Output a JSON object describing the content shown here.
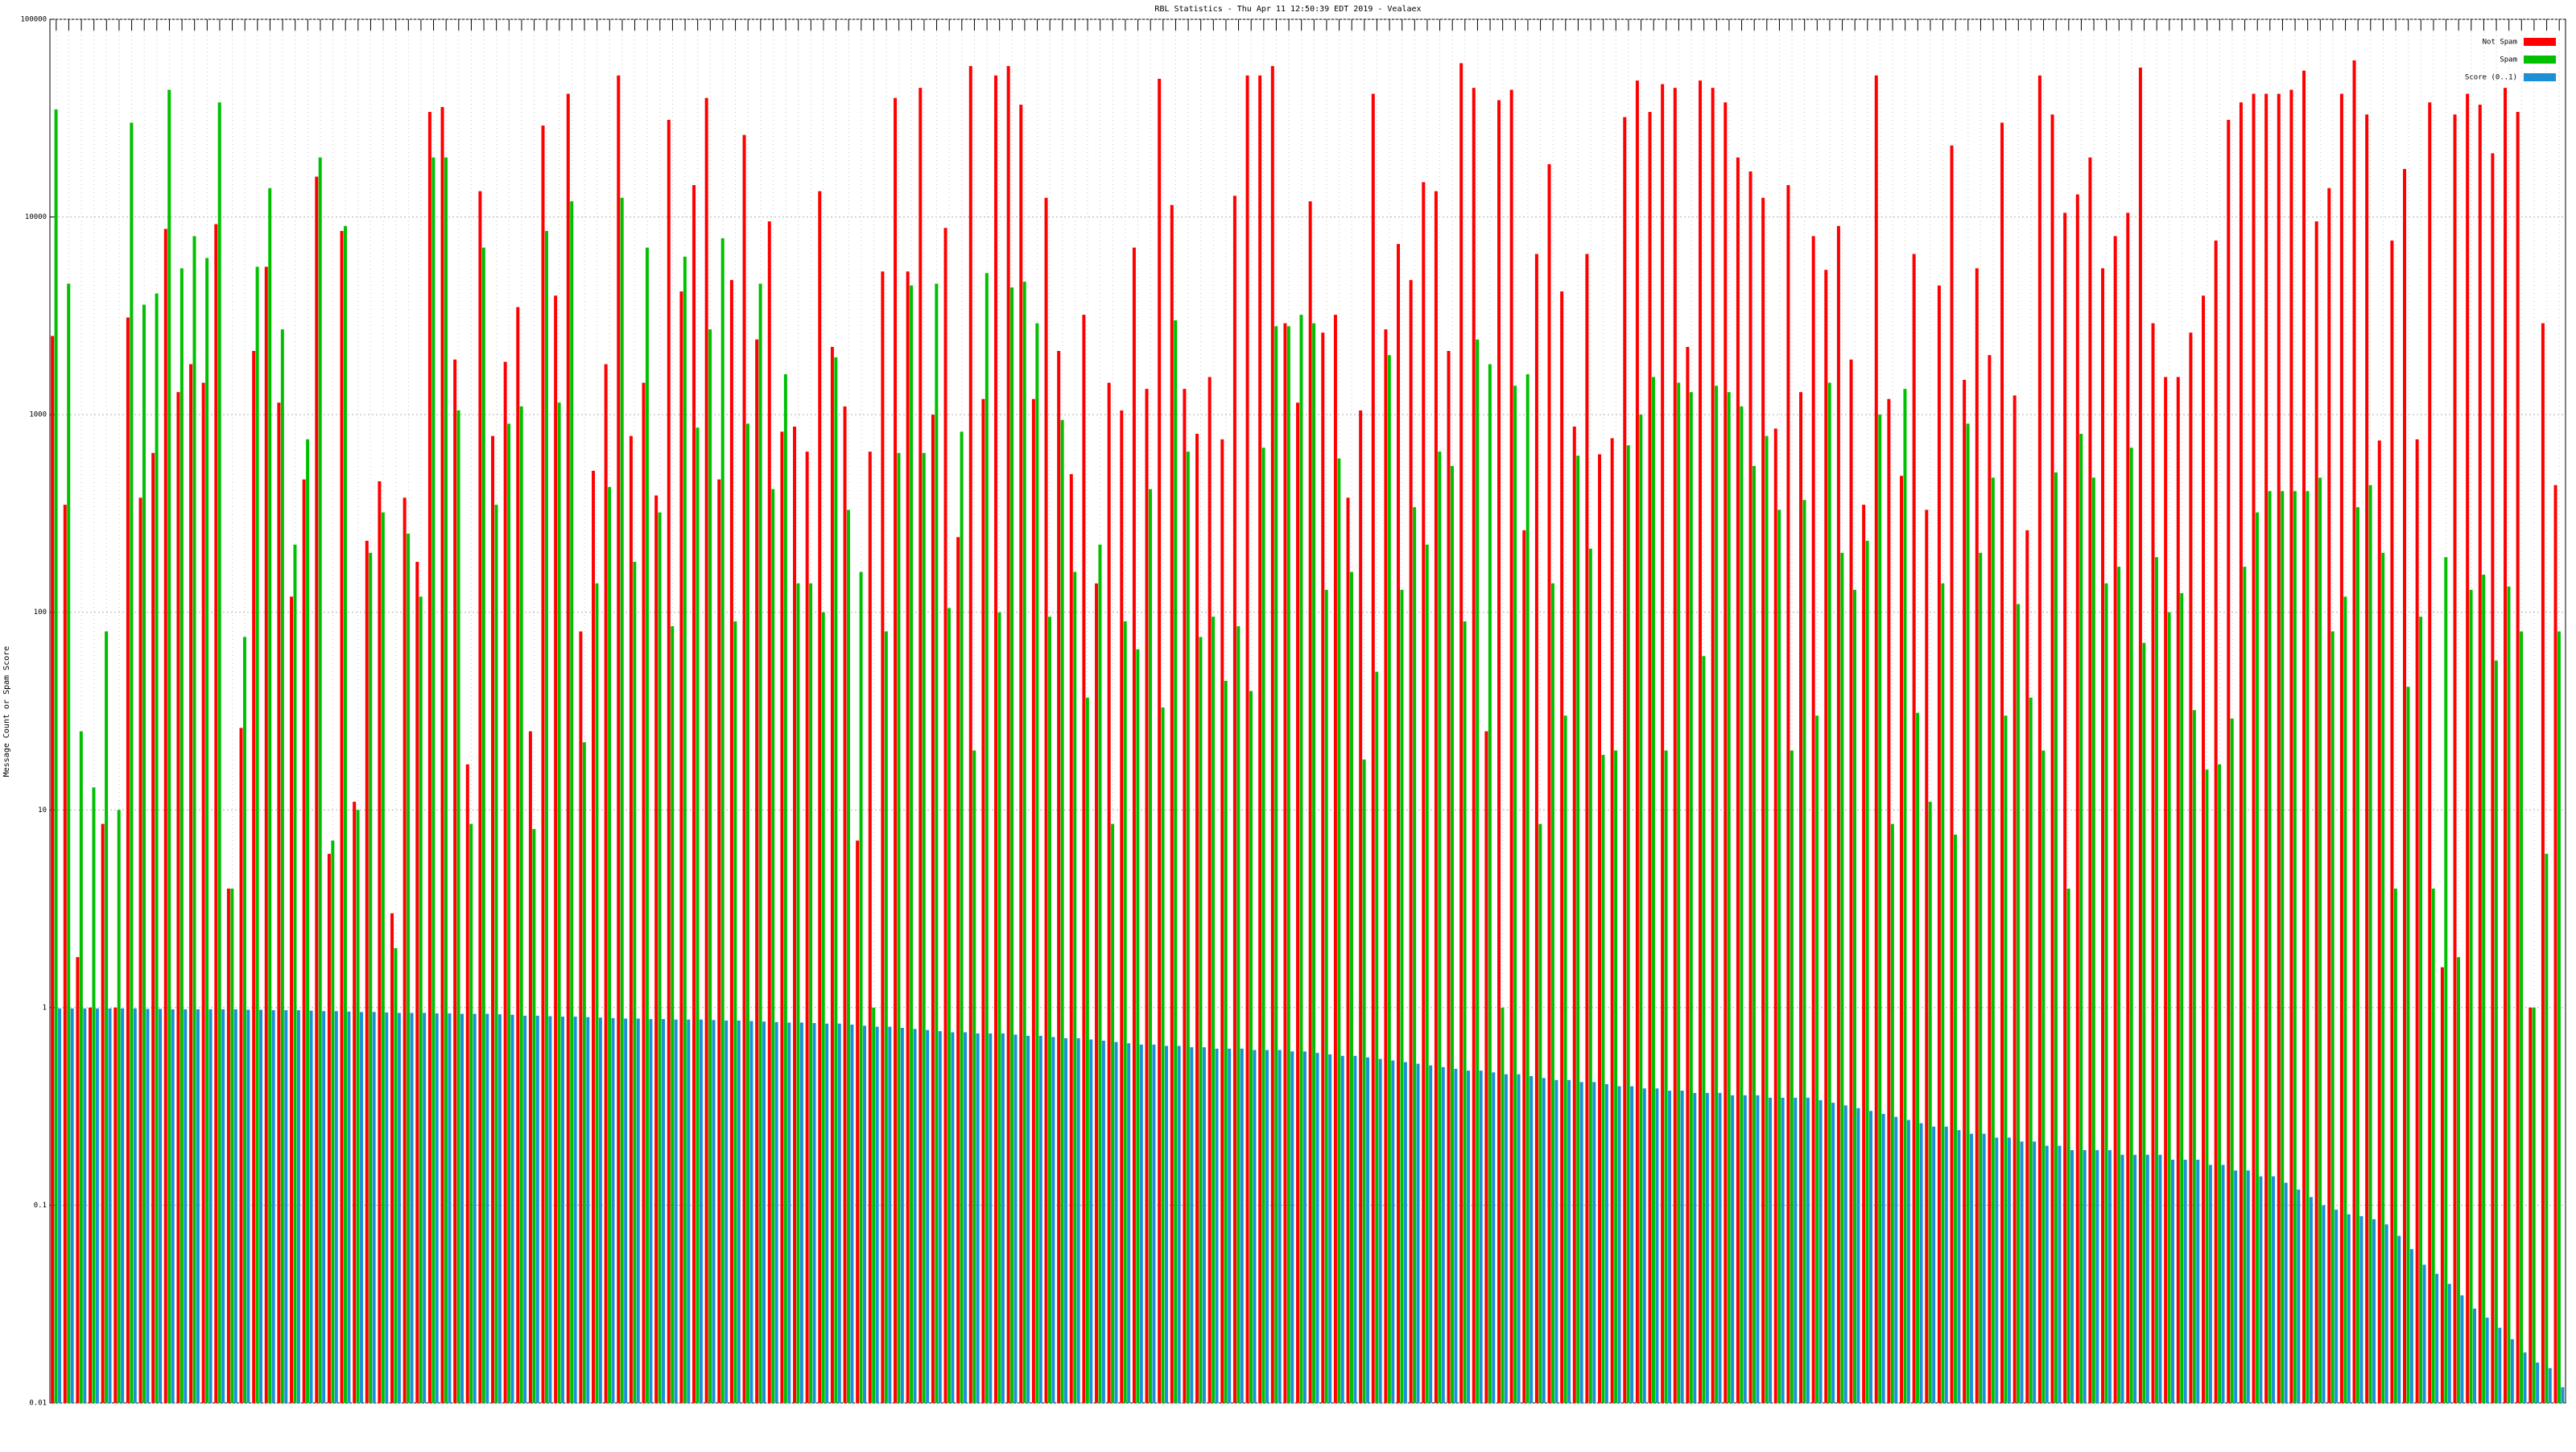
{
  "chart_data": {
    "type": "bar",
    "title": "RBL Statistics - Thu Apr 11 12:50:39 EDT 2019 - Vealaex",
    "y_label": "Message Count or Spam Score",
    "log_scale": true,
    "grid": true,
    "legend": "top-right",
    "ylim": [
      0.01,
      100000
    ],
    "yticks": [
      0.01,
      0.1,
      1,
      10,
      100,
      1000,
      10000,
      100000
    ],
    "categories": [
      null,
      null,
      null,
      null,
      null,
      null,
      null,
      null,
      null,
      null,
      null,
      null,
      null,
      null,
      null,
      null,
      null,
      null,
      null,
      null,
      null,
      null,
      null,
      null,
      null,
      null,
      null,
      null,
      null,
      null,
      null,
      null,
      null,
      null,
      null,
      null,
      null,
      null,
      null,
      null,
      null,
      null,
      null,
      null,
      null,
      null,
      null,
      null,
      null,
      null,
      null,
      null,
      null,
      null,
      null,
      null,
      null,
      null,
      null,
      null,
      null,
      null,
      null,
      null,
      null,
      null,
      null,
      null,
      null,
      null,
      null,
      null,
      null,
      null,
      null,
      null,
      null,
      null,
      null,
      null,
      null,
      null,
      null,
      null,
      null,
      null,
      null,
      null,
      null,
      null,
      null,
      null,
      null,
      null,
      null,
      null,
      null,
      null,
      null,
      null,
      null,
      null,
      null,
      null,
      null,
      null,
      null,
      null,
      null,
      null,
      null,
      null,
      null,
      null,
      null,
      null,
      null,
      null,
      null,
      null,
      null,
      null,
      null,
      null,
      null,
      null,
      null,
      null,
      null,
      null,
      null,
      null,
      null,
      null,
      null,
      null,
      null,
      null,
      null,
      null,
      null,
      null,
      null,
      null,
      null,
      null,
      null,
      null,
      null,
      null,
      null,
      null,
      null,
      null,
      null,
      null,
      null,
      null,
      null,
      null,
      null,
      null,
      null,
      null,
      null,
      null,
      null,
      null,
      null,
      null,
      null,
      null,
      null,
      null,
      null,
      null,
      null,
      null,
      null,
      null,
      null,
      null,
      null,
      null,
      null,
      null,
      null,
      null,
      null,
      null,
      null,
      null,
      null,
      null,
      null,
      null,
      null,
      null,
      null,
      null
    ],
    "series": [
      {
        "name": "Not Spam",
        "color": "#ff0000",
        "values": [
          2500,
          350,
          1.8,
          1,
          8.5,
          1,
          3100,
          380,
          640,
          8700,
          1300,
          1800,
          1450,
          9200,
          4,
          26,
          2100,
          5600,
          1150,
          120,
          470,
          16000,
          6,
          8500,
          11,
          230,
          460,
          3,
          380,
          180,
          34000,
          36000,
          1900,
          17,
          13500,
          780,
          1850,
          3500,
          25,
          29000,
          4000,
          42000,
          80,
          520,
          1800,
          52000,
          780,
          1450,
          390,
          31000,
          4200,
          14500,
          40000,
          470,
          4800,
          26000,
          2400,
          9500,
          820,
          870,
          650,
          13500,
          2200,
          1100,
          7,
          650,
          5300,
          40000,
          5300,
          45000,
          1000,
          8800,
          240,
          58000,
          1200,
          52000,
          58000,
          37000,
          1200,
          12500,
          2100,
          500,
          3200,
          140,
          1450,
          1050,
          7000,
          1350,
          50000,
          11500,
          1350,
          800,
          1550,
          750,
          12800,
          52000,
          52000,
          58000,
          2900,
          1150,
          12000,
          2600,
          3200,
          380,
          1050,
          42000,
          2700,
          7300,
          4800,
          15000,
          13500,
          2100,
          60000,
          45000,
          25,
          39000,
          44000,
          260,
          6500,
          18500,
          4200,
          870,
          6500,
          630,
          760,
          32000,
          49000,
          34000,
          47000,
          45000,
          2200,
          49000,
          45000,
          38000,
          20000,
          17000,
          12500,
          850,
          14500,
          1300,
          8000,
          5400,
          9000,
          1900,
          350,
          52000,
          1200,
          490,
          6500,
          330,
          4500,
          23000,
          1500,
          5500,
          2000,
          30000,
          1250,
          260,
          52000,
          33000,
          10500,
          13000,
          20000,
          5500,
          8000,
          10500,
          57000,
          2900,
          1550,
          1550,
          2600,
          4000,
          7600,
          31000,
          38000,
          42000,
          42000,
          42000,
          44000,
          55000,
          9500,
          14000,
          42000,
          62000,
          33000,
          740,
          7600,
          17500,
          750,
          38000,
          1.6,
          33000,
          42000,
          37000,
          21000,
          45000,
          34000,
          1,
          2900,
          440
        ]
      },
      {
        "name": "Spam",
        "color": "#00c000",
        "values": [
          35000,
          4600,
          25,
          13,
          80,
          10,
          30000,
          3600,
          4100,
          44000,
          5500,
          8000,
          6200,
          38000,
          4,
          75,
          5600,
          14000,
          2700,
          220,
          750,
          20000,
          7,
          9000,
          10,
          200,
          320,
          2,
          250,
          120,
          20000,
          20000,
          1050,
          8.5,
          7000,
          350,
          900,
          1100,
          8,
          8500,
          1150,
          12000,
          22,
          140,
          430,
          12500,
          180,
          7000,
          320,
          85,
          6300,
          860,
          2700,
          7800,
          90,
          900,
          4600,
          420,
          1600,
          140,
          140,
          100,
          1950,
          330,
          160,
          1,
          80,
          640,
          4500,
          640,
          4600,
          105,
          820,
          20,
          5200,
          100,
          4400,
          4700,
          2900,
          95,
          940,
          160,
          37,
          220,
          8.5,
          90,
          65,
          420,
          33,
          3000,
          650,
          75,
          95,
          45,
          85,
          40,
          680,
          2800,
          2800,
          3200,
          2900,
          130,
          600,
          160,
          18,
          50,
          2000,
          130,
          340,
          220,
          650,
          550,
          90,
          2400,
          1800,
          1,
          1400,
          1600,
          8.5,
          140,
          30,
          620,
          210,
          19,
          20,
          700,
          1000,
          1550,
          20,
          1450,
          1300,
          60,
          1400,
          1300,
          1100,
          550,
          780,
          330,
          20,
          370,
          30,
          1450,
          200,
          130,
          230,
          1000,
          8.5,
          1350,
          31,
          11,
          140,
          7.5,
          900,
          200,
          480,
          30,
          110,
          37,
          20,
          510,
          4,
          800,
          480,
          140,
          170,
          680,
          70,
          190,
          100,
          125,
          32,
          16,
          17,
          29,
          170,
          320,
          410,
          410,
          410,
          410,
          480,
          80,
          120,
          340,
          440,
          200,
          4,
          42,
          95,
          4,
          190,
          1.8,
          130,
          155,
          57,
          135,
          80,
          1,
          6,
          80
        ]
      },
      {
        "name": "Score (0..1)",
        "color": "#1c8fd6",
        "values": [
          0.99,
          0.99,
          0.99,
          0.99,
          0.99,
          0.99,
          0.99,
          0.985,
          0.985,
          0.98,
          0.98,
          0.98,
          0.98,
          0.98,
          0.98,
          0.975,
          0.975,
          0.97,
          0.97,
          0.97,
          0.965,
          0.96,
          0.96,
          0.955,
          0.95,
          0.95,
          0.945,
          0.94,
          0.94,
          0.94,
          0.935,
          0.935,
          0.93,
          0.93,
          0.93,
          0.925,
          0.92,
          0.91,
          0.91,
          0.905,
          0.9,
          0.9,
          0.895,
          0.89,
          0.885,
          0.88,
          0.88,
          0.875,
          0.875,
          0.87,
          0.87,
          0.87,
          0.865,
          0.86,
          0.86,
          0.855,
          0.85,
          0.845,
          0.84,
          0.84,
          0.835,
          0.83,
          0.83,
          0.82,
          0.81,
          0.8,
          0.8,
          0.79,
          0.78,
          0.77,
          0.76,
          0.75,
          0.75,
          0.74,
          0.74,
          0.74,
          0.73,
          0.72,
          0.72,
          0.71,
          0.7,
          0.7,
          0.69,
          0.68,
          0.67,
          0.66,
          0.65,
          0.65,
          0.64,
          0.64,
          0.63,
          0.63,
          0.62,
          0.62,
          0.62,
          0.61,
          0.61,
          0.61,
          0.6,
          0.6,
          0.59,
          0.58,
          0.57,
          0.57,
          0.56,
          0.55,
          0.54,
          0.53,
          0.52,
          0.51,
          0.5,
          0.49,
          0.48,
          0.48,
          0.47,
          0.46,
          0.46,
          0.45,
          0.44,
          0.43,
          0.43,
          0.42,
          0.42,
          0.41,
          0.4,
          0.4,
          0.39,
          0.39,
          0.38,
          0.38,
          0.37,
          0.37,
          0.37,
          0.36,
          0.36,
          0.36,
          0.35,
          0.35,
          0.35,
          0.35,
          0.34,
          0.33,
          0.32,
          0.31,
          0.3,
          0.29,
          0.28,
          0.27,
          0.26,
          0.25,
          0.25,
          0.24,
          0.23,
          0.23,
          0.22,
          0.22,
          0.21,
          0.21,
          0.2,
          0.2,
          0.19,
          0.19,
          0.19,
          0.19,
          0.18,
          0.18,
          0.18,
          0.18,
          0.17,
          0.17,
          0.17,
          0.16,
          0.16,
          0.15,
          0.15,
          0.14,
          0.14,
          0.13,
          0.12,
          0.11,
          0.1,
          0.095,
          0.09,
          0.088,
          0.085,
          0.08,
          0.07,
          0.06,
          0.05,
          0.045,
          0.04,
          0.035,
          0.03,
          0.027,
          0.024,
          0.021,
          0.018,
          0.016,
          0.015,
          0.012
        ]
      }
    ]
  }
}
